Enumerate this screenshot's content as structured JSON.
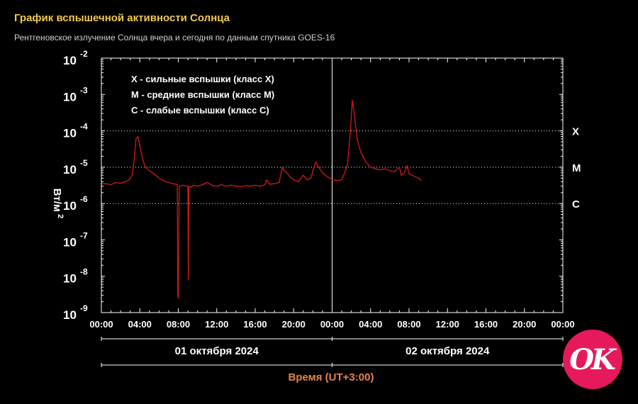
{
  "header": {
    "title": "График вспышечной активности Солнца",
    "subtitle": "Рентгеновское излучение Солнца вчера и сегодня по данным спутника GOES-16"
  },
  "logo": {
    "text": "OK"
  },
  "colors": {
    "title": "#f2c84b",
    "axis_label": "#e8834a",
    "line": "#d11a1a",
    "frame": "#ffffff",
    "logo_bg": "#e6195a"
  },
  "chart_data": {
    "type": "line",
    "title": "График вспышечной активности Солнца",
    "xlabel": "Время (UT+3:00)",
    "ylabel": "Вт/м²",
    "y_scale": "log",
    "ylim": [
      1e-09,
      0.01
    ],
    "xlim": [
      0,
      48
    ],
    "x_tick_labels": [
      "00:00",
      "04:00",
      "08:00",
      "12:00",
      "16:00",
      "20:00",
      "00:00",
      "04:00",
      "08:00",
      "12:00",
      "16:00",
      "20:00",
      "00:00"
    ],
    "x_ticks": [
      0,
      4,
      8,
      12,
      16,
      20,
      24,
      28,
      32,
      36,
      40,
      44,
      48
    ],
    "y_ticks": [
      {
        "base": "10",
        "exp": "-2",
        "value": 0.01
      },
      {
        "base": "10",
        "exp": "-3",
        "value": 0.001
      },
      {
        "base": "10",
        "exp": "-4",
        "value": 0.0001
      },
      {
        "base": "10",
        "exp": "-5",
        "value": 1e-05
      },
      {
        "base": "10",
        "exp": "-6",
        "value": 1e-06
      },
      {
        "base": "10",
        "exp": "-7",
        "value": 1e-07
      },
      {
        "base": "10",
        "exp": "-8",
        "value": 1e-08
      },
      {
        "base": "10",
        "exp": "-9",
        "value": 1e-09
      }
    ],
    "ylabel_parts": {
      "base": "Вт/м",
      "sup": "2"
    },
    "class_levels": [
      {
        "label": "X",
        "value": 0.0001
      },
      {
        "label": "M",
        "value": 1e-05
      },
      {
        "label": "C",
        "value": 1e-06
      }
    ],
    "day_divider_x": 24,
    "days": [
      {
        "label": "01 октября 2024",
        "start": 0,
        "end": 24
      },
      {
        "label": "02 октября 2024",
        "start": 24,
        "end": 48
      }
    ],
    "legend": [
      "X - сильные вспышки (класс X)",
      "M - средние вспышки (класс M)",
      "C - слабые вспышки (класс C)"
    ],
    "series": [
      {
        "x": [
          0,
          0.5,
          1,
          1.5,
          2,
          2.5,
          2.9,
          3.2,
          3.4,
          3.6,
          3.8,
          4.0,
          4.3,
          4.6,
          5,
          5.5,
          6,
          6.5,
          7,
          7.5,
          7.9,
          7.95,
          8.0,
          8.1,
          8.2,
          8.5,
          8.9,
          9.0,
          9.05,
          9.1,
          9.3,
          9.6,
          10,
          10.5,
          11,
          11.5,
          12,
          12.5,
          13,
          13.5,
          14,
          14.5,
          15,
          15.5,
          16,
          16.5,
          17,
          17.2,
          17.5,
          18,
          18.5,
          18.8,
          19,
          19.3,
          19.6,
          20,
          20.5,
          21,
          21.4,
          21.8,
          22,
          22.3,
          22.6,
          23,
          23.5,
          24,
          24.5,
          25,
          25.3,
          25.6,
          25.9,
          26.1,
          26.3,
          26.6,
          27,
          27.5,
          28,
          28.5,
          29,
          29.5,
          30,
          30.5,
          31,
          31.2,
          31.5,
          31.8,
          32,
          32.3,
          32.6,
          33,
          33.3
        ],
        "y": [
          3.5e-06,
          3.5e-06,
          3.3e-06,
          3.8e-06,
          3.6e-06,
          4e-06,
          4.5e-06,
          6e-06,
          1.5e-05,
          6e-05,
          7e-05,
          4e-05,
          1.6e-05,
          1e-05,
          8e-06,
          6.5e-06,
          5e-06,
          4.2e-06,
          3.8e-06,
          3.5e-06,
          3.3e-06,
          3e-09,
          2.5e-09,
          3e-06,
          3e-06,
          3.2e-06,
          3e-06,
          2.8e-06,
          8e-09,
          3e-06,
          2.8e-06,
          3.2e-06,
          3e-06,
          3.3e-06,
          3.8e-06,
          3.2e-06,
          3e-06,
          3.3e-06,
          3e-06,
          3.2e-06,
          3e-06,
          2.9e-06,
          3.1e-06,
          3e-06,
          3.2e-06,
          3e-06,
          3.3e-06,
          4.5e-06,
          3.4e-06,
          3.5e-06,
          3.8e-06,
          1e-05,
          8e-06,
          7e-06,
          5.5e-06,
          4.5e-06,
          4e-06,
          6e-06,
          4.5e-06,
          5e-06,
          8e-06,
          1.4e-05,
          1e-05,
          7e-06,
          5.5e-06,
          4.5e-06,
          4.3e-06,
          4.5e-06,
          7e-06,
          1.2e-05,
          0.0001,
          0.0007,
          0.0003,
          6e-05,
          2.5e-05,
          1.4e-05,
          1e-05,
          9e-06,
          8.5e-06,
          9e-06,
          8e-06,
          7.5e-06,
          1e-05,
          6e-06,
          7e-06,
          1.1e-05,
          6.5e-06,
          6e-06,
          5.5e-06,
          5e-06,
          4.2e-06
        ]
      }
    ]
  }
}
